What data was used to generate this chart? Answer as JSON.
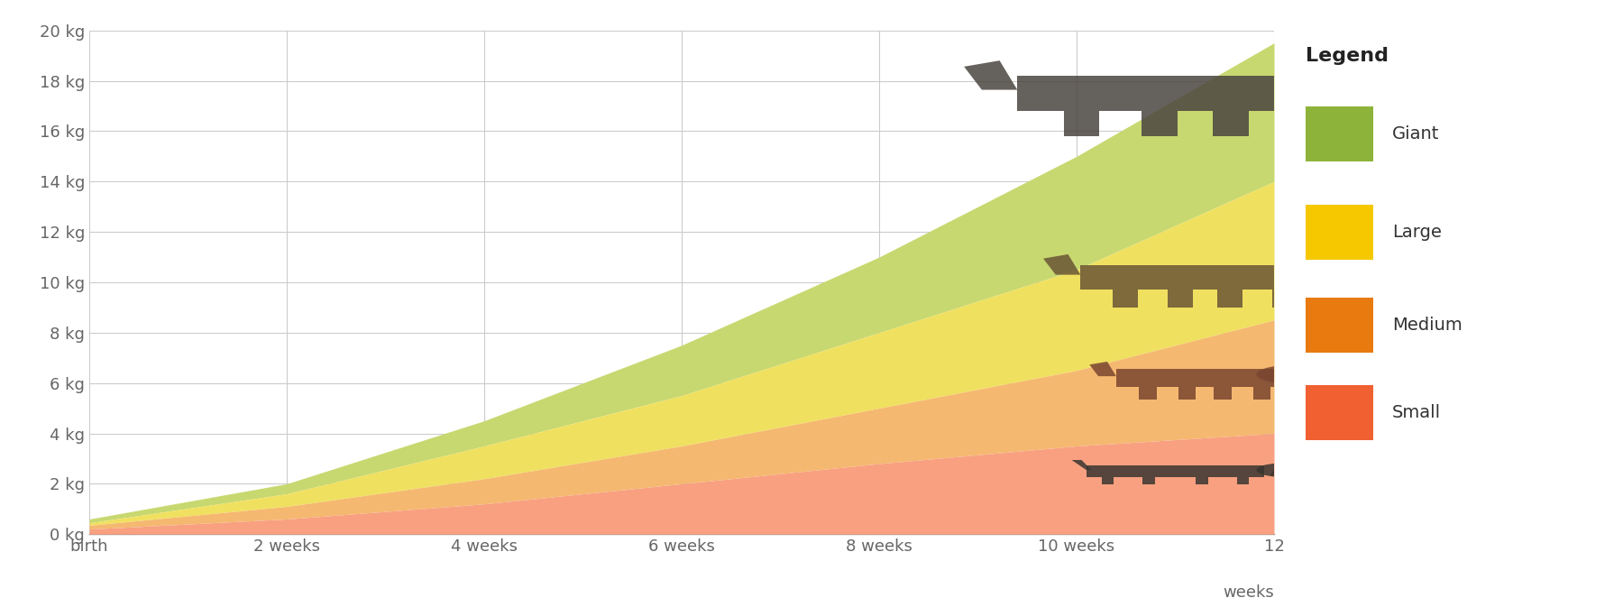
{
  "title": "",
  "xlabel": "weeks",
  "xlim": [
    0,
    12
  ],
  "ylim": [
    0,
    20
  ],
  "x_ticks": [
    0,
    2,
    4,
    6,
    8,
    10,
    12
  ],
  "x_tick_labels": [
    "birth",
    "2 weeks",
    "4 weeks",
    "6 weeks",
    "8 weeks",
    "10 weeks",
    "12"
  ],
  "y_ticks": [
    0,
    2,
    4,
    6,
    8,
    10,
    12,
    14,
    16,
    18,
    20
  ],
  "y_tick_labels": [
    "0 kg",
    "2 kg",
    "4 kg",
    "6 kg",
    "8 kg",
    "10 kg",
    "12 kg",
    "14 kg",
    "16 kg",
    "18 kg",
    "20 kg"
  ],
  "background_color": "#ffffff",
  "grid_color": "#cccccc",
  "legend_title": "Legend",
  "legend_entries": [
    "Giant",
    "Large",
    "Medium",
    "Small"
  ],
  "legend_colors": [
    "#8db33a",
    "#f5c800",
    "#e87a10",
    "#f06030"
  ],
  "series": {
    "x": [
      0,
      2,
      4,
      6,
      8,
      10,
      12
    ],
    "giant_upper": [
      0.6,
      2.0,
      4.5,
      7.5,
      11.0,
      15.0,
      19.5
    ],
    "large_upper": [
      0.45,
      1.6,
      3.5,
      5.5,
      8.0,
      10.5,
      14.0
    ],
    "medium_upper": [
      0.35,
      1.1,
      2.2,
      3.5,
      5.0,
      6.5,
      8.5
    ],
    "small_upper": [
      0.2,
      0.6,
      1.2,
      2.0,
      2.8,
      3.5,
      4.0
    ],
    "zero": [
      0.0,
      0.0,
      0.0,
      0.0,
      0.0,
      0.0,
      0.0
    ]
  },
  "band_fill_colors": [
    "#c8d870",
    "#f0e060",
    "#f5b870",
    "#f8a080"
  ],
  "border_color": "#888888",
  "tick_color": "#666666",
  "tick_fontsize": 13,
  "legend_fontsize": 16,
  "legend_label_fontsize": 14
}
